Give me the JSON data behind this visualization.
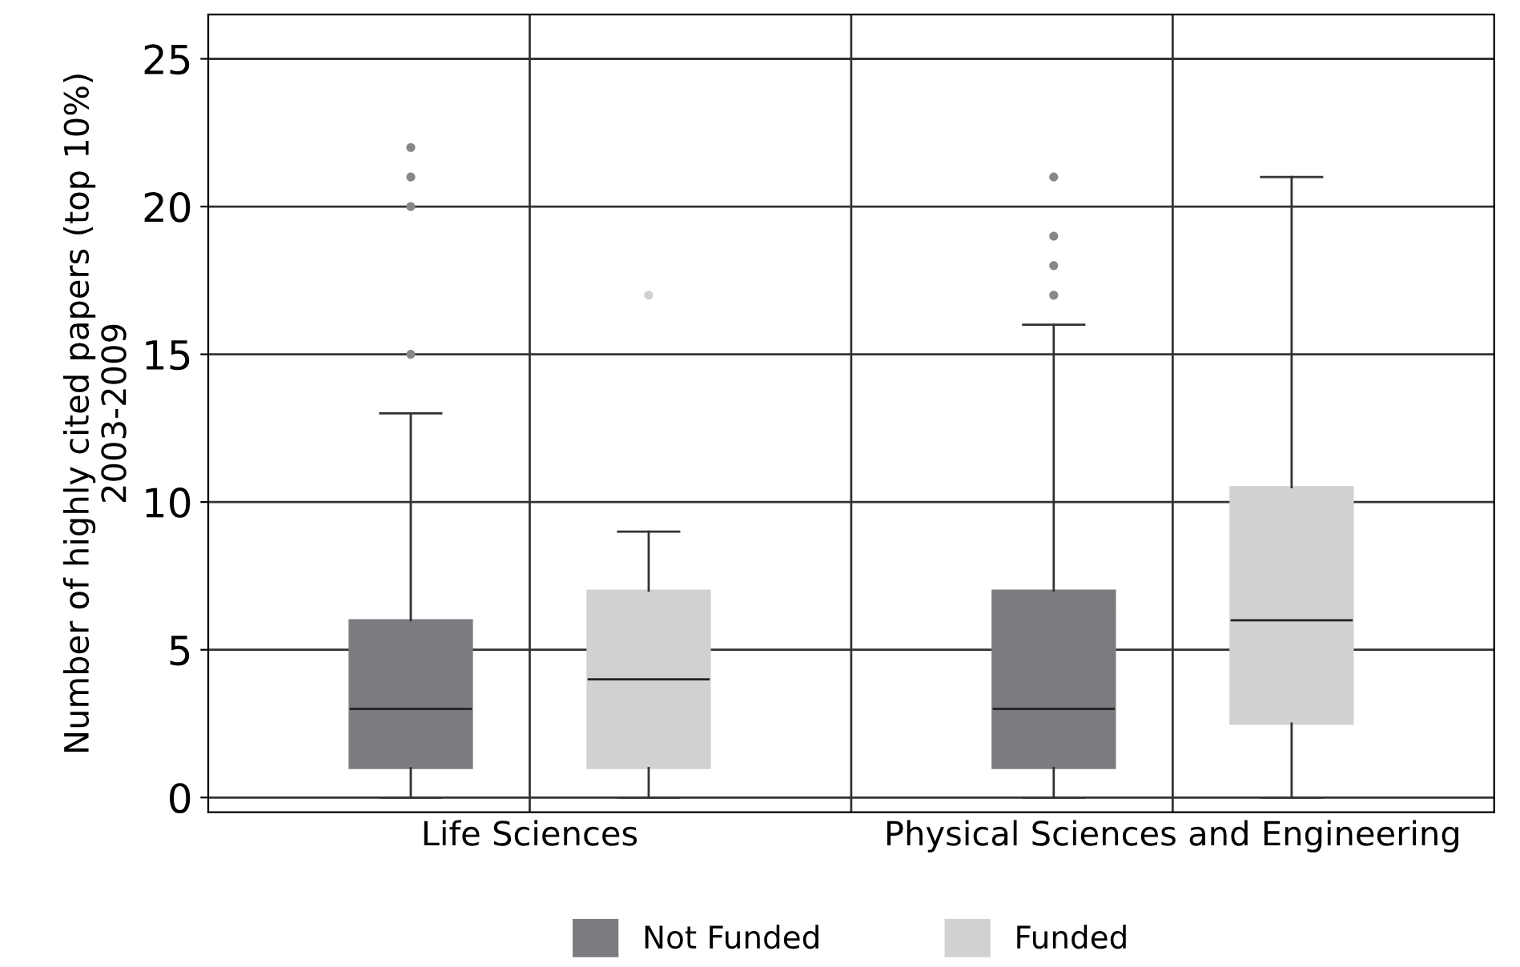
{
  "chart_data": {
    "type": "box",
    "ylabel": "Number of highly cited papers (top 10%) 2003-2009",
    "categories": [
      "Life Sciences",
      "Physical Sciences and Engineering"
    ],
    "series": [
      {
        "name": "Not Funded",
        "color": "#7b7b80",
        "boxes": [
          {
            "low": 0,
            "q1": 1,
            "median": 3,
            "q3": 6,
            "high": 13,
            "outliers": [
              15,
              20,
              21,
              22
            ]
          },
          {
            "low": 0,
            "q1": 1,
            "median": 3,
            "q3": 7,
            "high": 16,
            "outliers": [
              17,
              18,
              19,
              21
            ]
          }
        ]
      },
      {
        "name": "Funded",
        "color": "#d0d1d3",
        "boxes": [
          {
            "low": 0,
            "q1": 1,
            "median": 4,
            "q3": 7,
            "high": 9,
            "outliers": [
              17
            ]
          },
          {
            "low": 0,
            "q1": 2.5,
            "median": 6,
            "q3": 10.5,
            "high": 21
          }
        ]
      }
    ],
    "ylim": [
      -0.5,
      26.5
    ],
    "yticks": [
      0,
      5,
      10,
      15,
      20,
      25
    ],
    "grid": true,
    "legend": "bottom"
  }
}
